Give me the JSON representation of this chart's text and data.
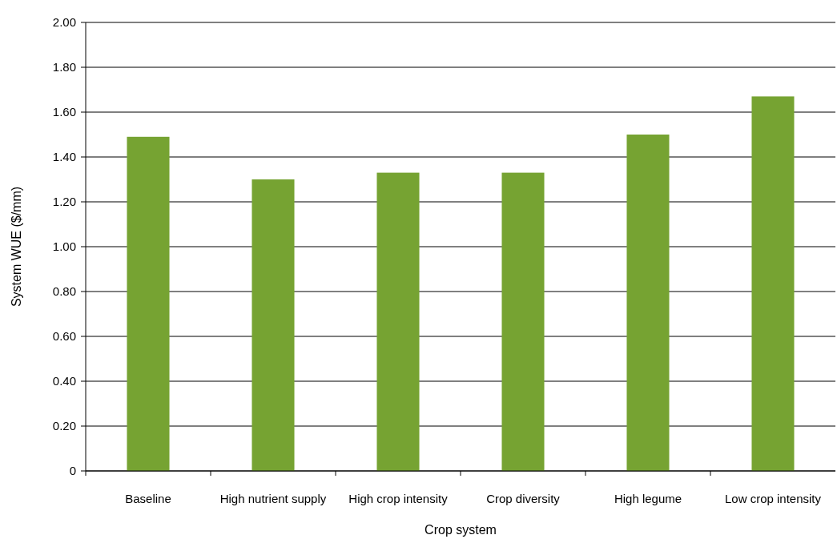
{
  "chart_data": {
    "type": "bar",
    "xlabel": "Crop system",
    "ylabel": "System WUE ($/mm)",
    "categories": [
      "Baseline",
      "High nutrient supply",
      "High crop intensity",
      "Crop diversity",
      "High legume",
      "Low crop intensity"
    ],
    "values": [
      1.49,
      1.3,
      1.33,
      1.33,
      1.5,
      1.67
    ],
    "color": "#76a332",
    "ylim": [
      0,
      2
    ],
    "yticks": [
      {
        "value": 0,
        "label": "0"
      },
      {
        "value": 0.2,
        "label": "0.20"
      },
      {
        "value": 0.4,
        "label": "0.40"
      },
      {
        "value": 0.6,
        "label": "0.60"
      },
      {
        "value": 0.8,
        "label": "0.80"
      },
      {
        "value": 1,
        "label": "1.00"
      },
      {
        "value": 1.2,
        "label": "1.20"
      },
      {
        "value": 1.4,
        "label": "1.40"
      },
      {
        "value": 1.6,
        "label": "1.60"
      },
      {
        "value": 1.8,
        "label": "1.80"
      },
      {
        "value": 2,
        "label": "2.00"
      }
    ],
    "grid": "y"
  }
}
